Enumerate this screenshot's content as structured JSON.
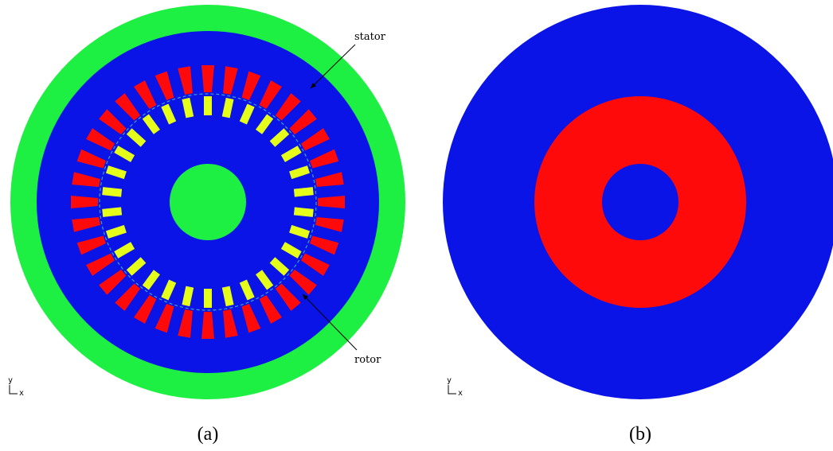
{
  "panels": [
    {
      "caption": "(a)",
      "annotations": [
        "stator",
        "rotor"
      ],
      "axis_labels": {
        "y": "y",
        "x": "x"
      }
    },
    {
      "caption": "(b)",
      "axis_labels": {
        "y": "y",
        "x": "x"
      }
    }
  ]
}
